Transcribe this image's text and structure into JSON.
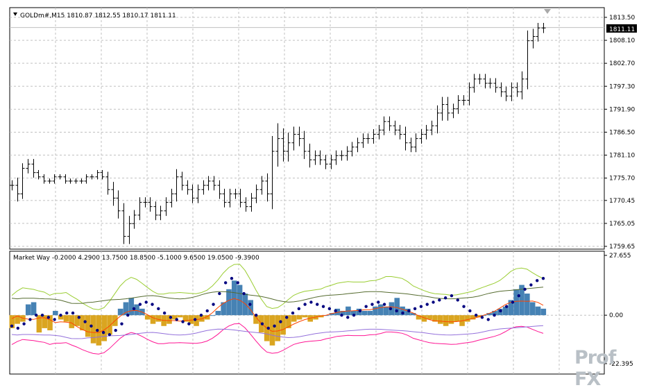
{
  "price_panel": {
    "symbol_line": "GOLDm#,M15  1810.87 1812.55 1810.17 1811.11",
    "current_price": "1811.11",
    "ticks": [
      "1813.50",
      "1808.10",
      "1802.70",
      "1797.30",
      "1791.90",
      "1786.50",
      "1781.10",
      "1775.70",
      "1770.45",
      "1765.05",
      "1759.65"
    ]
  },
  "indicator_panel": {
    "header": "Market Way -0.2000 4.2900 13.7500 18.8500 -5.1000 9.6500 19.0500 -9.3900",
    "ticks": [
      "27.655",
      "0.00",
      "-22.395"
    ]
  },
  "watermark": {
    "text": "Prof FX"
  },
  "colors": {
    "frame": "#000000",
    "grid": "#c0c0c0",
    "bar": "#000000",
    "hist_up": "#4682b4",
    "hist_down": "#daa520",
    "dots": "#000080",
    "line_green": "#9acd32",
    "line_dark": "#556b2f",
    "line_red": "#ff4500",
    "line_magenta": "#ff1493",
    "line_purple": "#9370db"
  },
  "chart_data": [
    {
      "type": "ohlc",
      "symbol": "GOLDm#",
      "timeframe": "M15",
      "last_bar": {
        "open": 1810.87,
        "high": 1812.55,
        "low": 1810.17,
        "close": 1811.11
      },
      "ylim": [
        1759.65,
        1813.5
      ],
      "grid": true,
      "closes": [
        1774,
        1772,
        1778,
        1779,
        1777,
        1776,
        1775,
        1775,
        1776,
        1776,
        1775,
        1775,
        1775,
        1775,
        1776,
        1776,
        1777,
        1776,
        1773,
        1771,
        1768,
        1762,
        1765,
        1767,
        1770,
        1770,
        1769,
        1767,
        1768,
        1770,
        1772,
        1776,
        1774,
        1773,
        1771,
        1773,
        1774,
        1775,
        1774,
        1772,
        1770,
        1772,
        1772,
        1770,
        1769,
        1771,
        1773,
        1775,
        1772,
        1782,
        1785,
        1782,
        1784,
        1786,
        1785,
        1782,
        1780,
        1781,
        1780,
        1779,
        1780,
        1781,
        1781,
        1782,
        1783,
        1784,
        1785,
        1785,
        1786,
        1787,
        1789,
        1788,
        1787,
        1786,
        1784,
        1783,
        1785,
        1786,
        1787,
        1788,
        1791,
        1793,
        1791,
        1792,
        1794,
        1794,
        1797,
        1799,
        1799,
        1798,
        1798,
        1797,
        1796,
        1795,
        1797,
        1796,
        1799,
        1808,
        1809,
        1811,
        1811
      ],
      "ranges": [
        2,
        3,
        2,
        2,
        2,
        1,
        1,
        1,
        1,
        1,
        1,
        1,
        1,
        1,
        1,
        1,
        1,
        1,
        2,
        3,
        3,
        3,
        3,
        2,
        2,
        2,
        2,
        2,
        2,
        2,
        2,
        3,
        2,
        2,
        2,
        2,
        2,
        2,
        2,
        2,
        2,
        2,
        2,
        2,
        2,
        2,
        2,
        2,
        3,
        6,
        6,
        4,
        4,
        3,
        3,
        3,
        3,
        2,
        2,
        2,
        2,
        2,
        2,
        2,
        2,
        2,
        2,
        2,
        2,
        2,
        2,
        2,
        2,
        2,
        3,
        2,
        2,
        2,
        2,
        2,
        3,
        3,
        3,
        2,
        2,
        2,
        2,
        2,
        2,
        2,
        2,
        2,
        2,
        2,
        2,
        2,
        3,
        4,
        3,
        2,
        2
      ]
    },
    {
      "type": "indicator",
      "name": "Market Way",
      "values": [
        -0.2,
        4.29,
        13.75,
        18.85,
        -5.1,
        9.65,
        19.05,
        -9.39
      ],
      "ylim": [
        -22.395,
        27.655
      ],
      "histogram": [
        -6,
        -4,
        -3,
        5,
        6,
        -8,
        -6,
        -7,
        2,
        -2,
        -3,
        -6,
        -5,
        -7,
        -10,
        -13,
        -14,
        -12,
        -9,
        -5,
        3,
        6,
        8,
        5,
        3,
        -2,
        -4,
        -3,
        -5,
        -4,
        -2,
        -1,
        -3,
        -4,
        -5,
        -3,
        -2,
        0,
        2,
        6,
        12,
        16,
        14,
        10,
        7,
        -4,
        -8,
        -12,
        -14,
        -12,
        -9,
        -6,
        -3,
        -2,
        -1,
        -3,
        -2,
        -1,
        0,
        1,
        3,
        2,
        4,
        2,
        3,
        2,
        2,
        4,
        5,
        4,
        6,
        8,
        4,
        3,
        1,
        -2,
        -3,
        -2,
        -3,
        -4,
        -5,
        -4,
        -3,
        -5,
        -3,
        -2,
        -1,
        0,
        1,
        2,
        3,
        4,
        7,
        12,
        14,
        10,
        6,
        4,
        3
      ],
      "dots": [
        -5,
        -6,
        -4,
        -2,
        0,
        0,
        -1,
        -2,
        0,
        1,
        1,
        -1,
        -3,
        -5,
        -7,
        -8,
        -9,
        -7,
        -4,
        0,
        3,
        5,
        6,
        5,
        3,
        1,
        -1,
        -2,
        -3,
        -4,
        -2,
        0,
        2,
        5,
        10,
        15,
        17,
        15,
        10,
        5,
        0,
        -4,
        -6,
        -5,
        -3,
        -1,
        1,
        3,
        5,
        6,
        5,
        4,
        3,
        2,
        0,
        -1,
        0,
        2,
        4,
        5,
        6,
        5,
        3,
        2,
        1,
        2,
        3,
        4,
        5,
        6,
        7,
        8,
        9,
        7,
        4,
        2,
        0,
        -1,
        -2,
        0,
        2,
        4,
        6,
        9,
        12,
        14,
        16,
        17
      ]
    }
  ]
}
